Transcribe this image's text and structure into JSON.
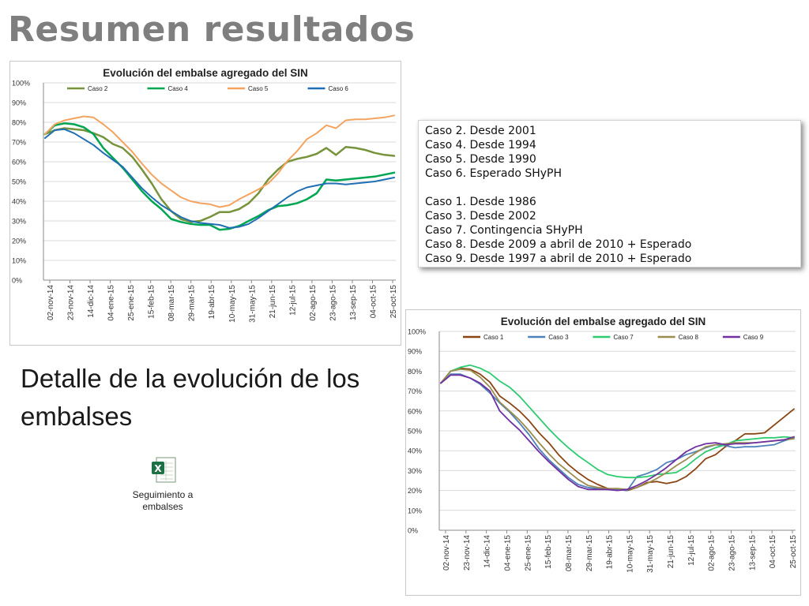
{
  "title": "Resumen resultados",
  "subtitle": "Detalle de la evolución de los embalses",
  "file": {
    "label_line1": "Seguimiento a",
    "label_line2": "embalses"
  },
  "legend_box": {
    "group1": [
      "Caso 2. Desde 2001",
      "Caso 4. Desde 1994",
      "Caso 5. Desde 1990",
      "Caso 6. Esperado SHyPH"
    ],
    "group2": [
      "Caso 1. Desde 1986",
      "Caso 3. Desde 2002",
      "Caso 7. Contingencia SHyPH",
      "Caso 8. Desde 2009 a abril de 2010 + Esperado",
      "Caso 9. Desde 1997 a abril de 2010 + Esperado"
    ]
  },
  "chart_data": [
    {
      "type": "line",
      "title": "Evolución del embalse agregado del SIN",
      "xlabel": "",
      "ylabel": "",
      "ylim": [
        0,
        1
      ],
      "yticks": [
        "0%",
        "10%",
        "20%",
        "30%",
        "40%",
        "50%",
        "60%",
        "70%",
        "80%",
        "90%",
        "100%"
      ],
      "x_tick_labels": [
        "02-nov-14",
        "23-nov-14",
        "14-dic-14",
        "04-ene-15",
        "25-ene-15",
        "15-feb-15",
        "08-mar-15",
        "29-mar-15",
        "19-abr-15",
        "10-may-15",
        "31-may-15",
        "21-jun-15",
        "12-jul-15",
        "02-ago-15",
        "23-ago-15",
        "13-sep-15",
        "04-oct-15",
        "25-oct-15"
      ],
      "grid": true,
      "legend": "top",
      "series": [
        {
          "name": "Caso 2",
          "color": "#77933c",
          "width": 2.5,
          "values": [
            0.74,
            0.76,
            0.77,
            0.765,
            0.76,
            0.745,
            0.725,
            0.69,
            0.67,
            0.625,
            0.56,
            0.49,
            0.41,
            0.35,
            0.31,
            0.295,
            0.3,
            0.32,
            0.345,
            0.345,
            0.36,
            0.39,
            0.44,
            0.51,
            0.56,
            0.6,
            0.615,
            0.625,
            0.64,
            0.67,
            0.635,
            0.675,
            0.67,
            0.66,
            0.645,
            0.635,
            0.63
          ]
        },
        {
          "name": "Caso 4",
          "color": "#00a651",
          "width": 2.5,
          "values": [
            0.74,
            0.785,
            0.795,
            0.79,
            0.775,
            0.74,
            0.67,
            0.62,
            0.57,
            0.51,
            0.45,
            0.4,
            0.36,
            0.31,
            0.295,
            0.285,
            0.28,
            0.28,
            0.255,
            0.26,
            0.275,
            0.3,
            0.325,
            0.355,
            0.375,
            0.38,
            0.39,
            0.41,
            0.44,
            0.51,
            0.505,
            0.51,
            0.515,
            0.52,
            0.525,
            0.535,
            0.545
          ]
        },
        {
          "name": "Caso 5",
          "color": "#f4a460",
          "width": 2,
          "values": [
            0.74,
            0.79,
            0.81,
            0.82,
            0.83,
            0.825,
            0.79,
            0.75,
            0.7,
            0.65,
            0.59,
            0.535,
            0.49,
            0.455,
            0.42,
            0.4,
            0.39,
            0.385,
            0.37,
            0.38,
            0.41,
            0.435,
            0.46,
            0.49,
            0.54,
            0.605,
            0.655,
            0.715,
            0.745,
            0.785,
            0.77,
            0.81,
            0.815,
            0.815,
            0.82,
            0.825,
            0.835
          ]
        },
        {
          "name": "Caso 6",
          "color": "#1f6fb2",
          "width": 2,
          "values": [
            0.72,
            0.76,
            0.765,
            0.745,
            0.715,
            0.685,
            0.645,
            0.61,
            0.575,
            0.52,
            0.465,
            0.42,
            0.38,
            0.35,
            0.32,
            0.3,
            0.29,
            0.285,
            0.28,
            0.265,
            0.27,
            0.285,
            0.315,
            0.35,
            0.385,
            0.42,
            0.45,
            0.47,
            0.48,
            0.49,
            0.49,
            0.485,
            0.49,
            0.495,
            0.5,
            0.51,
            0.52
          ]
        }
      ]
    },
    {
      "type": "line",
      "title": "Evolución del embalse agregado del SIN",
      "xlabel": "",
      "ylabel": "",
      "ylim": [
        0,
        1
      ],
      "yticks": [
        "0%",
        "10%",
        "20%",
        "30%",
        "40%",
        "50%",
        "60%",
        "70%",
        "80%",
        "90%",
        "100%"
      ],
      "x_tick_labels": [
        "02-nov-14",
        "23-nov-14",
        "14-dic-14",
        "04-ene-15",
        "25-ene-15",
        "15-feb-15",
        "08-mar-15",
        "29-mar-15",
        "19-abr-15",
        "10-may-15",
        "31-may-15",
        "21-jun-15",
        "12-jul-15",
        "02-ago-15",
        "23-ago-15",
        "13-sep-15",
        "04-oct-15",
        "25-oct-15"
      ],
      "grid": true,
      "legend": "top",
      "series": [
        {
          "name": "Caso 1",
          "color": "#8b4513",
          "width": 1.8,
          "values": [
            0.74,
            0.8,
            0.815,
            0.81,
            0.785,
            0.745,
            0.675,
            0.64,
            0.6,
            0.55,
            0.49,
            0.44,
            0.38,
            0.33,
            0.29,
            0.255,
            0.23,
            0.21,
            0.205,
            0.2,
            0.215,
            0.24,
            0.245,
            0.235,
            0.245,
            0.27,
            0.31,
            0.36,
            0.38,
            0.42,
            0.45,
            0.485,
            0.485,
            0.49,
            0.53,
            0.57,
            0.61
          ]
        },
        {
          "name": "Caso 3",
          "color": "#4f81bd",
          "width": 1.8,
          "values": [
            0.74,
            0.785,
            0.785,
            0.765,
            0.735,
            0.69,
            0.64,
            0.595,
            0.54,
            0.48,
            0.41,
            0.355,
            0.31,
            0.265,
            0.23,
            0.215,
            0.21,
            0.205,
            0.205,
            0.2,
            0.27,
            0.285,
            0.305,
            0.34,
            0.355,
            0.38,
            0.395,
            0.415,
            0.43,
            0.425,
            0.415,
            0.42,
            0.42,
            0.425,
            0.43,
            0.45,
            0.465
          ]
        },
        {
          "name": "Caso 7",
          "color": "#2ecc71",
          "width": 1.8,
          "values": [
            0.74,
            0.8,
            0.82,
            0.83,
            0.815,
            0.79,
            0.75,
            0.72,
            0.675,
            0.62,
            0.565,
            0.51,
            0.46,
            0.415,
            0.375,
            0.34,
            0.305,
            0.28,
            0.27,
            0.265,
            0.265,
            0.27,
            0.28,
            0.285,
            0.29,
            0.32,
            0.36,
            0.395,
            0.415,
            0.43,
            0.45,
            0.455,
            0.46,
            0.465,
            0.465,
            0.47,
            0.465
          ]
        },
        {
          "name": "Caso 8",
          "color": "#9a8d4e",
          "width": 1.8,
          "values": [
            0.74,
            0.8,
            0.81,
            0.805,
            0.77,
            0.72,
            0.645,
            0.6,
            0.555,
            0.5,
            0.44,
            0.385,
            0.335,
            0.295,
            0.255,
            0.225,
            0.215,
            0.21,
            0.21,
            0.205,
            0.215,
            0.235,
            0.26,
            0.29,
            0.325,
            0.355,
            0.39,
            0.42,
            0.43,
            0.435,
            0.44,
            0.44,
            0.44,
            0.445,
            0.45,
            0.455,
            0.46
          ]
        },
        {
          "name": "Caso 9",
          "color": "#7030a0",
          "width": 1.8,
          "values": [
            0.74,
            0.78,
            0.78,
            0.765,
            0.74,
            0.7,
            0.6,
            0.55,
            0.505,
            0.45,
            0.395,
            0.345,
            0.3,
            0.255,
            0.22,
            0.205,
            0.205,
            0.205,
            0.2,
            0.205,
            0.225,
            0.25,
            0.28,
            0.315,
            0.355,
            0.395,
            0.42,
            0.435,
            0.44,
            0.43,
            0.435,
            0.435,
            0.44,
            0.445,
            0.45,
            0.455,
            0.47
          ]
        }
      ]
    }
  ]
}
